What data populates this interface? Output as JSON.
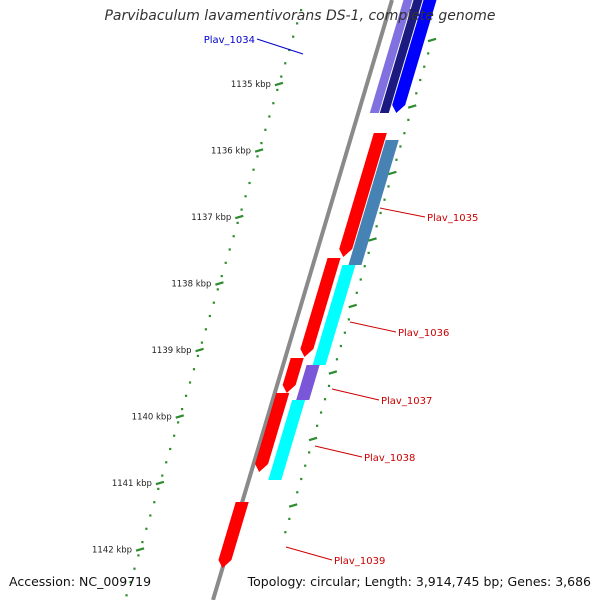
{
  "title": "Parvibaculum lavamentivorans DS-1, complete genome",
  "accession": "Accession: NC_009719",
  "topology": "Topology: circular; Length: 3,914,745 bp; Genes: 3,686",
  "ticks": [
    {
      "kbp": 1135,
      "label": "1135 kbp"
    },
    {
      "kbp": 1136,
      "label": "1136 kbp"
    },
    {
      "kbp": 1137,
      "label": "1137 kbp"
    },
    {
      "kbp": 1138,
      "label": "1138 kbp"
    },
    {
      "kbp": 1139,
      "label": "1139 kbp"
    },
    {
      "kbp": 1140,
      "label": "1140 kbp"
    },
    {
      "kbp": 1141,
      "label": "1141 kbp"
    },
    {
      "kbp": 1142,
      "label": "1142 kbp"
    }
  ],
  "genes": [
    {
      "label": "Plav_1034",
      "color": "#0000cc"
    },
    {
      "label": "Plav_1035",
      "color": "#cc0000"
    },
    {
      "label": "Plav_1036",
      "color": "#cc0000"
    },
    {
      "label": "Plav_1037",
      "color": "#cc0000"
    },
    {
      "label": "Plav_1038",
      "color": "#cc0000"
    },
    {
      "label": "Plav_1039",
      "color": "#cc0000"
    }
  ],
  "colors": {
    "backbone": "#8a8a8a",
    "cds": "#ff0000",
    "cds_blue": "#0000ff",
    "feature_navy": "#1a1a80",
    "feature_lavender": "#8070e0",
    "feature_steelblue": "#4682b4",
    "feature_cyan": "#00ffff",
    "feature_purple": "#7a56d8",
    "tick": "#2e8b2e"
  }
}
